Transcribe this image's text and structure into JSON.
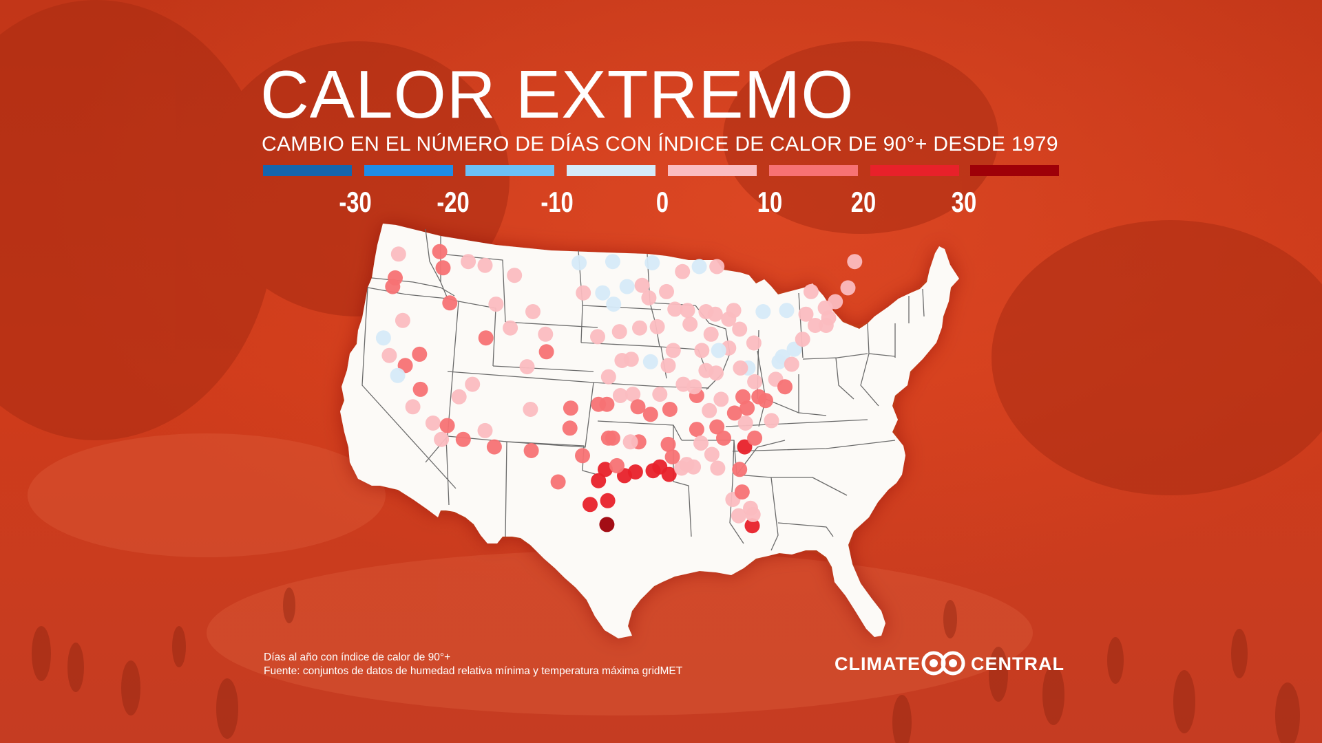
{
  "title": "CALOR EXTREMO",
  "subtitle": "CAMBIO EN EL NÚMERO DE DÍAS CON ÍNDICE DE CALOR DE 90°+ DESDE 1979",
  "legend": {
    "colors": [
      "#1565ad",
      "#1f8ce6",
      "#6cc0f6",
      "#d6eaf8",
      "#fbbcc0",
      "#f77274",
      "#e8212a",
      "#9e0008"
    ],
    "ticks": [
      "-30",
      "-20",
      "-10",
      "0",
      "10",
      "20",
      "30"
    ]
  },
  "footnote": {
    "line1": "Días al año con índice de calor de 90°+",
    "line2": "Fuente: conjuntos de datos de humedad relativa mínima y temperatura máxima gridMET"
  },
  "logo": {
    "left": "CLIMATE",
    "right": "CENTRAL"
  },
  "colors": {
    "background": "#c8341c",
    "map_land": "#fcfaf7",
    "state_border": "#6a6a6a",
    "text": "#ffffff"
  },
  "map_data": {
    "stations": [
      [
        -122.3,
        47.5,
        8
      ],
      [
        -122.7,
        45.6,
        18
      ],
      [
        -117.4,
        47.7,
        18
      ],
      [
        -116.2,
        43.6,
        18
      ],
      [
        -112.0,
        46.6,
        8
      ],
      [
        -108.5,
        45.8,
        10
      ],
      [
        -104.8,
        41.1,
        8
      ],
      [
        -106.3,
        42.9,
        10
      ],
      [
        -111.9,
        40.8,
        18
      ],
      [
        -104.7,
        39.7,
        18
      ],
      [
        -106.6,
        35.1,
        10
      ],
      [
        -112.0,
        33.4,
        10
      ],
      [
        -110.9,
        32.1,
        18
      ],
      [
        -115.1,
        36.1,
        10
      ],
      [
        -119.8,
        39.5,
        18
      ],
      [
        -118.2,
        34.0,
        10
      ],
      [
        -117.2,
        32.7,
        10
      ],
      [
        -119.7,
        36.7,
        18
      ],
      [
        -121.5,
        38.6,
        18
      ],
      [
        -122.4,
        37.8,
        -5
      ],
      [
        -124.1,
        40.8,
        -5
      ],
      [
        -123.0,
        44.9,
        18
      ],
      [
        -121.8,
        42.2,
        10
      ],
      [
        -114.0,
        46.9,
        10
      ],
      [
        -100.8,
        46.8,
        -5
      ],
      [
        -96.8,
        46.9,
        -5
      ],
      [
        -98.0,
        44.4,
        -5
      ],
      [
        -96.7,
        43.5,
        -5
      ],
      [
        -100.3,
        44.4,
        8
      ],
      [
        -98.6,
        40.9,
        10
      ],
      [
        -96.0,
        41.3,
        10
      ],
      [
        -97.3,
        37.7,
        10
      ],
      [
        -95.7,
        39.0,
        10
      ],
      [
        -98.5,
        35.5,
        18
      ],
      [
        -97.5,
        35.5,
        18
      ],
      [
        -95.9,
        36.2,
        10
      ],
      [
        -101.8,
        35.2,
        18
      ],
      [
        -101.9,
        33.6,
        18
      ],
      [
        -97.3,
        32.8,
        18
      ],
      [
        -96.8,
        32.8,
        18
      ],
      [
        -98.5,
        29.4,
        25
      ],
      [
        -95.4,
        29.8,
        25
      ],
      [
        -97.4,
        27.8,
        25
      ],
      [
        -97.5,
        25.9,
        35
      ],
      [
        -99.5,
        27.5,
        25
      ],
      [
        -94.1,
        30.1,
        25
      ],
      [
        -93.7,
        32.5,
        18
      ],
      [
        -91.2,
        30.5,
        25
      ],
      [
        -90.1,
        29.9,
        25
      ],
      [
        -92.0,
        30.2,
        25
      ],
      [
        -90.2,
        32.3,
        18
      ],
      [
        -88.6,
        30.4,
        10
      ],
      [
        -86.8,
        33.5,
        18
      ],
      [
        -86.3,
        32.4,
        10
      ],
      [
        -84.4,
        33.7,
        18
      ],
      [
        -81.1,
        32.1,
        25
      ],
      [
        -81.7,
        30.3,
        18
      ],
      [
        -82.5,
        27.9,
        10
      ],
      [
        -80.2,
        25.8,
        25
      ],
      [
        -81.4,
        28.5,
        18
      ],
      [
        -84.3,
        30.4,
        10
      ],
      [
        -87.2,
        30.5,
        10
      ],
      [
        -80.8,
        35.2,
        18
      ],
      [
        -78.6,
        35.8,
        18
      ],
      [
        -79.9,
        32.8,
        18
      ],
      [
        -77.9,
        34.2,
        10
      ],
      [
        -81.0,
        34.0,
        10
      ],
      [
        -86.8,
        36.2,
        18
      ],
      [
        -90.0,
        35.1,
        18
      ],
      [
        -85.3,
        35.0,
        10
      ],
      [
        -83.9,
        35.9,
        10
      ],
      [
        -84.5,
        38.0,
        10
      ],
      [
        -85.7,
        38.2,
        10
      ],
      [
        -92.3,
        34.7,
        18
      ],
      [
        -94.4,
        36.3,
        10
      ],
      [
        -90.2,
        38.6,
        10
      ],
      [
        -94.6,
        39.1,
        10
      ],
      [
        -92.3,
        38.9,
        -5
      ],
      [
        -93.6,
        41.6,
        10
      ],
      [
        -91.5,
        41.7,
        10
      ],
      [
        -93.3,
        45.0,
        8
      ],
      [
        -92.1,
        46.8,
        -5
      ],
      [
        -89.4,
        43.1,
        10
      ],
      [
        -87.9,
        43.0,
        10
      ],
      [
        -87.6,
        41.9,
        10
      ],
      [
        -89.6,
        39.8,
        10
      ],
      [
        -86.2,
        39.8,
        10
      ],
      [
        -85.1,
        41.1,
        10
      ],
      [
        -83.0,
        40.0,
        10
      ],
      [
        -81.7,
        41.5,
        10
      ],
      [
        -84.2,
        39.8,
        -5
      ],
      [
        -83.0,
        42.3,
        10
      ],
      [
        -85.7,
        42.9,
        10
      ],
      [
        -84.6,
        42.7,
        10
      ],
      [
        -86.5,
        46.5,
        -5
      ],
      [
        -80.0,
        40.4,
        10
      ],
      [
        -77.0,
        38.9,
        -5
      ],
      [
        -76.6,
        39.3,
        -5
      ],
      [
        -75.2,
        39.9,
        -5
      ],
      [
        -74.2,
        40.7,
        10
      ],
      [
        -73.8,
        42.7,
        10
      ],
      [
        -76.1,
        43.0,
        -5
      ],
      [
        -78.9,
        42.9,
        -5
      ],
      [
        -71.1,
        42.4,
        10
      ],
      [
        -72.7,
        41.8,
        10
      ],
      [
        -71.4,
        41.8,
        10
      ],
      [
        -70.3,
        43.7,
        10
      ],
      [
        -68.8,
        44.8,
        10
      ],
      [
        -68.0,
        46.9,
        8
      ],
      [
        -73.2,
        44.5,
        10
      ],
      [
        -71.5,
        43.2,
        10
      ],
      [
        -77.4,
        37.5,
        10
      ],
      [
        -76.3,
        36.9,
        18
      ],
      [
        -79.9,
        37.3,
        10
      ],
      [
        -80.7,
        38.4,
        -5
      ],
      [
        -81.6,
        38.4,
        10
      ],
      [
        -89.7,
        31.3,
        18
      ],
      [
        -88.0,
        30.7,
        10
      ],
      [
        -82.3,
        34.8,
        18
      ],
      [
        -83.6,
        32.8,
        18
      ],
      [
        -85.0,
        31.5,
        10
      ],
      [
        -80.4,
        27.2,
        10
      ],
      [
        -81.8,
        26.6,
        10
      ],
      [
        -80.1,
        26.7,
        10
      ],
      [
        -106.5,
        31.8,
        18
      ],
      [
        -103.3,
        29.3,
        18
      ],
      [
        -100.4,
        31.4,
        18
      ],
      [
        -97.7,
        30.3,
        25
      ],
      [
        -96.3,
        30.6,
        18
      ],
      [
        -94.7,
        32.5,
        10
      ],
      [
        -93.8,
        35.3,
        18
      ],
      [
        -91.2,
        36.3,
        10
      ],
      [
        -88.4,
        37.1,
        10
      ],
      [
        -87.1,
        36.9,
        10
      ],
      [
        -95.1,
        44.9,
        -5
      ],
      [
        -92.5,
        44.0,
        10
      ],
      [
        -90.4,
        44.5,
        10
      ],
      [
        -88.5,
        46.1,
        10
      ],
      [
        -84.4,
        46.5,
        10
      ],
      [
        -82.4,
        43.0,
        10
      ],
      [
        -75.5,
        38.7,
        10
      ],
      [
        -81.3,
        36.1,
        18
      ],
      [
        -79.4,
        36.1,
        18
      ],
      [
        -107.0,
        38.5,
        10
      ],
      [
        -109.0,
        41.6,
        8
      ],
      [
        -113.5,
        37.1,
        10
      ],
      [
        -114.6,
        32.7,
        18
      ],
      [
        -116.5,
        33.8,
        18
      ],
      [
        -120.6,
        35.3,
        10
      ],
      [
        -123.4,
        39.4,
        10
      ],
      [
        -117.0,
        46.4,
        18
      ],
      [
        -110.7,
        43.5,
        10
      ]
    ]
  }
}
